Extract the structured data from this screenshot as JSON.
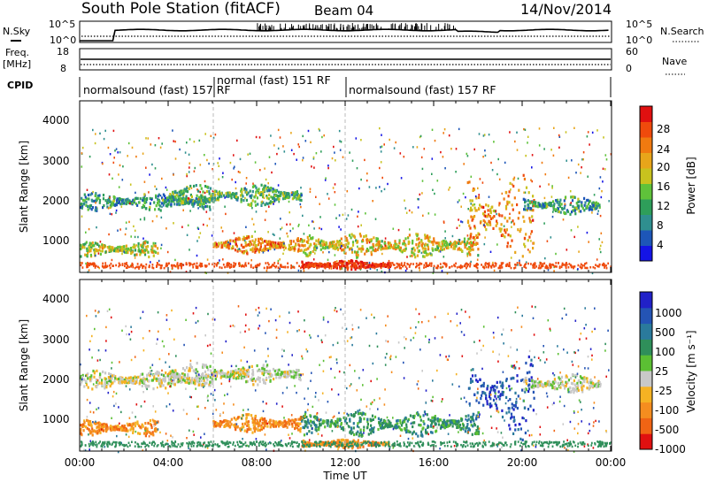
{
  "header": {
    "station": "South Pole Station (fitACF)",
    "beam": "Beam 04",
    "date": "14/Nov/2014"
  },
  "status_panels": {
    "nsky_label": "N.Sky",
    "nsearch_label": "N.Search",
    "nsky_ticks": [
      "10^5",
      "10^0"
    ],
    "freq_label_line1": "Freq.",
    "freq_label_line2": "[MHz]",
    "freq_ticks": [
      "18",
      "8"
    ],
    "nave_label": "Nave",
    "nave_ticks": [
      "60",
      "0"
    ],
    "cpid_label": "CPID",
    "cpid_segments": [
      {
        "text": "normalsound (fast) 157 RF",
        "start_h": 0,
        "end_h": 6
      },
      {
        "text": "normal (fast) 151 RF",
        "start_h": 6,
        "end_h": 11.9
      },
      {
        "text": "normalsound (fast) 157 RF",
        "start_h": 11.9,
        "end_h": 24
      }
    ]
  },
  "power_panel": {
    "ylabel": "Slant Range [km]",
    "yticks": [
      "4000",
      "3000",
      "2000",
      "1000"
    ],
    "colorbar_label": "Power [dB]",
    "colorbar_ticks": [
      "28",
      "24",
      "20",
      "16",
      "12",
      "8",
      "4"
    ],
    "colors": [
      "#1414e6",
      "#1d56b8",
      "#2f8f8f",
      "#2e9e5a",
      "#5fc23a",
      "#c8c21e",
      "#e8a51a",
      "#f07a10",
      "#ef4a0c",
      "#e01010"
    ]
  },
  "velocity_panel": {
    "ylabel": "Slant Range [km]",
    "yticks": [
      "4000",
      "3000",
      "2000",
      "1000"
    ],
    "colorbar_label": "Velocity [m s⁻¹]",
    "colorbar_ticks": [
      "1000",
      "500",
      "100",
      "25",
      "-25",
      "-100",
      "-500",
      "-1000"
    ],
    "colors": [
      "#2121c8",
      "#2454b4",
      "#2a7a9c",
      "#2f8f5a",
      "#5bbf33",
      "#c8c8c8",
      "#f5b223",
      "#f58d1f",
      "#f06414",
      "#e01010"
    ],
    "ground_scatter_color": "#c8c8c8"
  },
  "xaxis": {
    "label": "Time UT",
    "ticks": [
      "00:00",
      "04:00",
      "08:00",
      "12:00",
      "16:00",
      "20:00",
      "00:00"
    ]
  },
  "chart_data": {
    "type": "heatmap",
    "title": "South Pole Station (fitACF)",
    "xlabel": "Time UT",
    "ylabel": "Slant Range [km]",
    "xlim": [
      0,
      24
    ],
    "ylim": [
      180,
      4500
    ],
    "xunit": "hours UT",
    "panels": [
      "power",
      "velocity"
    ],
    "scatter_bands": [
      {
        "start_h": 0.0,
        "end_h": 6.0,
        "center_km": 2000,
        "width_km": 300,
        "power_db": 8,
        "velocity": "-25 to 25"
      },
      {
        "start_h": 0.0,
        "end_h": 3.5,
        "center_km": 800,
        "width_km": 250,
        "power_db": 14,
        "velocity": "-100 to -500"
      },
      {
        "start_h": 4.0,
        "end_h": 10.0,
        "center_km": 2150,
        "width_km": 350,
        "power_db": 10,
        "velocity": "-25 to 25"
      },
      {
        "start_h": 6.0,
        "end_h": 10.0,
        "center_km": 900,
        "width_km": 300,
        "power_db": 20,
        "velocity": "-100 to -500"
      },
      {
        "start_h": 10.0,
        "end_h": 18.0,
        "center_km": 900,
        "width_km": 400,
        "power_db": 16,
        "velocity": "100 to 500"
      },
      {
        "start_h": 10.0,
        "end_h": 14.0,
        "center_km": 400,
        "width_km": 150,
        "power_db": 28,
        "velocity": "-100 to 25"
      },
      {
        "start_h": 17.5,
        "end_h": 20.5,
        "center_km": 1600,
        "width_km": 1400,
        "power_db": 20,
        "velocity": "500 to 1000"
      },
      {
        "start_h": 20.0,
        "end_h": 23.5,
        "center_km": 1900,
        "width_km": 300,
        "power_db": 8,
        "velocity": "-25 to 25"
      }
    ]
  }
}
